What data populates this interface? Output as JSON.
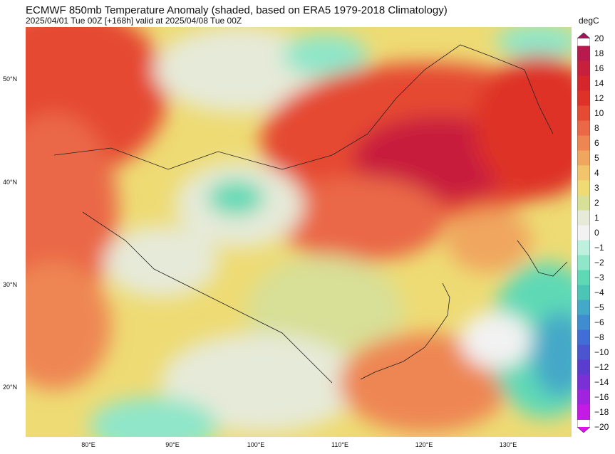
{
  "title": "ECMWF 850mb Temperature Anomaly (shaded, based on ERA5 1979-2018 Climatology)",
  "subtitle": "2025/04/01 Tue 00Z [+168h] valid at 2025/04/08 Tue 00Z",
  "lat_labels": [
    "50°N",
    "40°N",
    "30°N",
    "20°N"
  ],
  "lon_labels": [
    "80°E",
    "90°E",
    "100°E",
    "110°E",
    "120°E",
    "130°E"
  ],
  "colorbar": {
    "unit": "degC",
    "ticks": [
      "20",
      "18",
      "16",
      "14",
      "12",
      "10",
      "8",
      "6",
      "5",
      "4",
      "3",
      "2",
      "1",
      "0",
      "−1",
      "−2",
      "−3",
      "−4",
      "−5",
      "−6",
      "−8",
      "−10",
      "−12",
      "−14",
      "−16",
      "−18",
      "−20"
    ],
    "colors": [
      "#a0155b",
      "#b81a4e",
      "#c81f3c",
      "#d5262c",
      "#de3228",
      "#e54a33",
      "#ea6846",
      "#ee8652",
      "#f0a65f",
      "#f2c56c",
      "#eedb74",
      "#d8df96",
      "#e6ead8",
      "#f2f2f2",
      "#bdf0df",
      "#8fe6c9",
      "#5fd9b5",
      "#4dc5b6",
      "#44a8c8",
      "#3f8cd0",
      "#416ed6",
      "#4c55d0",
      "#5a3dcf",
      "#7b2fd6",
      "#a023e0",
      "#c41ae6",
      "#e010f2"
    ]
  },
  "map": {
    "lon_range": [
      72,
      137
    ],
    "lat_range": [
      15,
      55
    ]
  }
}
